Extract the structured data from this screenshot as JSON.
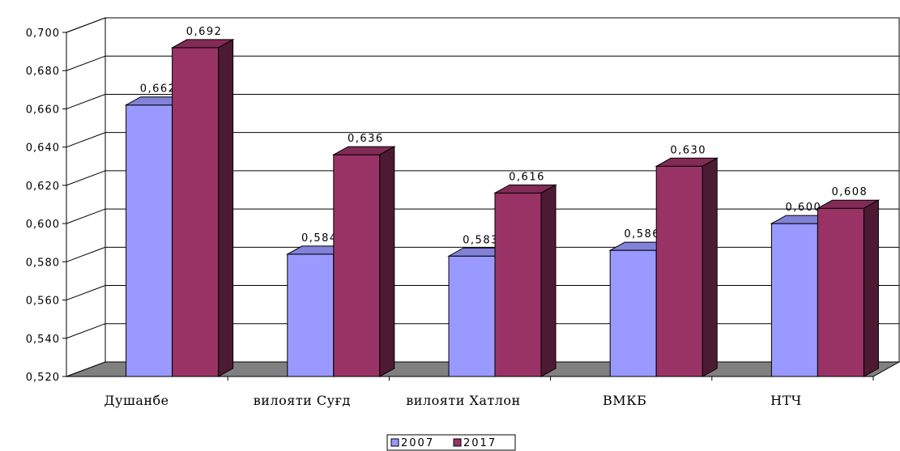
{
  "chart_data": {
    "type": "bar",
    "title": "",
    "xlabel": "",
    "ylabel": "",
    "ylim": [
      0.52,
      0.7
    ],
    "y_ticks": [
      "0,520",
      "0,540",
      "0,560",
      "0,580",
      "0,600",
      "0,620",
      "0,640",
      "0,660",
      "0,680",
      "0,700"
    ],
    "grid": true,
    "legend_position": "bottom",
    "categories": [
      "Душанбе",
      "вилояти Суғд",
      "вилояти Хатлон",
      "ВМКБ",
      "НТЧ"
    ],
    "series": [
      {
        "name": "2007",
        "color": "#9999ff",
        "values": [
          0.662,
          0.584,
          0.583,
          0.586,
          0.6
        ],
        "labels": [
          "0,662",
          "0,584",
          "0,583",
          "0,586",
          "0,600"
        ]
      },
      {
        "name": "2017",
        "color": "#993366",
        "values": [
          0.692,
          0.636,
          0.616,
          0.63,
          0.608
        ],
        "labels": [
          "0,692",
          "0,636",
          "0,616",
          "0,630",
          "0,608"
        ]
      }
    ]
  }
}
